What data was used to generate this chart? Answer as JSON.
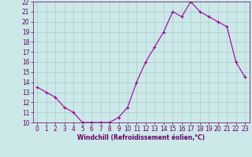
{
  "x": [
    0,
    1,
    2,
    3,
    4,
    5,
    6,
    7,
    8,
    9,
    10,
    11,
    12,
    13,
    14,
    15,
    16,
    17,
    18,
    19,
    20,
    21,
    22,
    23
  ],
  "y": [
    13.5,
    13.0,
    12.5,
    11.5,
    11.0,
    10.0,
    10.0,
    10.0,
    10.0,
    10.5,
    11.5,
    14.0,
    16.0,
    17.5,
    19.0,
    21.0,
    20.5,
    22.0,
    21.0,
    20.5,
    20.0,
    19.5,
    16.0,
    14.5
  ],
  "line_color": "#990099",
  "marker": "+",
  "bg_color": "#cce8e8",
  "grid_color": "#aacccc",
  "text_color": "#660066",
  "xlabel": "Windchill (Refroidissement éolien,°C)",
  "xlim_min": -0.5,
  "xlim_max": 23.5,
  "ylim_min": 10,
  "ylim_max": 22,
  "yticks": [
    10,
    11,
    12,
    13,
    14,
    15,
    16,
    17,
    18,
    19,
    20,
    21,
    22
  ],
  "xticks": [
    0,
    1,
    2,
    3,
    4,
    5,
    6,
    7,
    8,
    9,
    10,
    11,
    12,
    13,
    14,
    15,
    16,
    17,
    18,
    19,
    20,
    21,
    22,
    23
  ],
  "axis_fontsize": 5.5,
  "tick_fontsize": 5.5,
  "marker_size": 3,
  "linewidth": 0.8
}
